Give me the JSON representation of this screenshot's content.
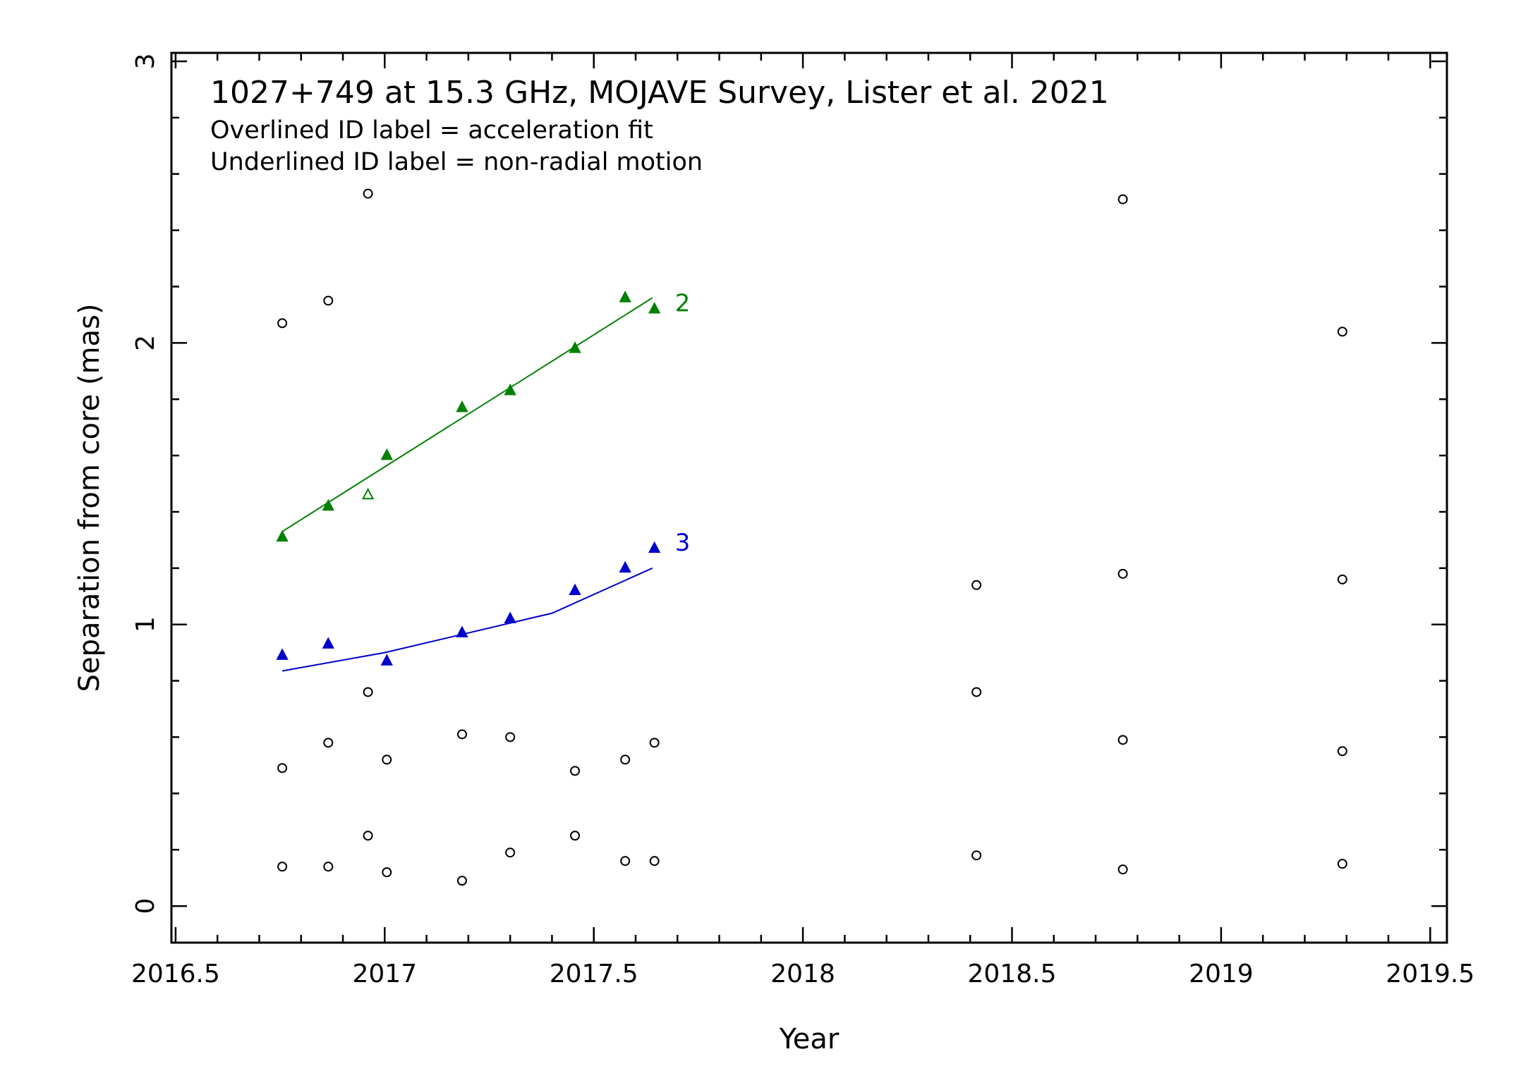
{
  "chart_data": {
    "type": "scatter",
    "title": "1027+749 at 15.3 GHz, MOJAVE Survey, Lister et al. 2021",
    "notes": [
      "Overlined ID label = acceleration fit",
      "Underlined ID label = non-radial motion"
    ],
    "xlabel": "Year",
    "ylabel": "Separation from core (mas)",
    "xlim": [
      2016.49,
      2019.54
    ],
    "ylim": [
      -0.13,
      3.03
    ],
    "xticks": [
      2016.5,
      2017,
      2017.5,
      2018,
      2018.5,
      2019,
      2019.5
    ],
    "xtick_labels": [
      "2016.5",
      "2017",
      "2017.5",
      "2018",
      "2018.5",
      "2019",
      "2019.5"
    ],
    "yticks": [
      0,
      1,
      2,
      3
    ],
    "ytick_labels": [
      "0",
      "1",
      "2",
      "3"
    ],
    "colors": {
      "axis": "#000000",
      "component_2": "#008000",
      "component_3": "#0000cc",
      "other": "#000000"
    },
    "series": [
      {
        "name": "2",
        "color": "#008000",
        "marker": "filled-triangle",
        "points": [
          [
            2016.755,
            1.31
          ],
          [
            2016.865,
            1.42
          ],
          [
            2017.005,
            1.6
          ],
          [
            2017.185,
            1.77
          ],
          [
            2017.3,
            1.83
          ],
          [
            2017.455,
            1.98
          ],
          [
            2017.575,
            2.16
          ],
          [
            2017.645,
            2.12
          ]
        ],
        "unused_points": [
          [
            2016.96,
            1.46
          ]
        ],
        "fit": [
          [
            2016.755,
            1.33
          ],
          [
            2017.64,
            2.16
          ]
        ]
      },
      {
        "name": "3",
        "color": "#0000cc",
        "marker": "filled-triangle",
        "points": [
          [
            2016.755,
            0.89
          ],
          [
            2016.865,
            0.93
          ],
          [
            2017.005,
            0.87
          ],
          [
            2017.185,
            0.97
          ],
          [
            2017.3,
            1.02
          ],
          [
            2017.455,
            1.12
          ],
          [
            2017.575,
            1.2
          ],
          [
            2017.645,
            1.27
          ]
        ],
        "fit": [
          [
            2016.755,
            0.835
          ],
          [
            2017.0,
            0.9
          ],
          [
            2017.2,
            0.97
          ],
          [
            2017.4,
            1.04
          ],
          [
            2017.64,
            1.2
          ]
        ]
      },
      {
        "color": "#000000",
        "marker": "open-circle",
        "points": [
          [
            2016.755,
            2.07
          ],
          [
            2016.865,
            2.15
          ],
          [
            2016.96,
            2.53
          ],
          [
            2018.765,
            2.51
          ],
          [
            2019.29,
            2.04
          ],
          [
            2018.415,
            1.14
          ],
          [
            2018.765,
            1.18
          ],
          [
            2019.29,
            1.16
          ],
          [
            2016.96,
            0.76
          ],
          [
            2018.415,
            0.76
          ],
          [
            2016.755,
            0.49
          ],
          [
            2016.865,
            0.58
          ],
          [
            2017.005,
            0.52
          ],
          [
            2017.185,
            0.61
          ],
          [
            2017.3,
            0.6
          ],
          [
            2017.455,
            0.48
          ],
          [
            2017.575,
            0.52
          ],
          [
            2017.645,
            0.58
          ],
          [
            2018.765,
            0.59
          ],
          [
            2019.29,
            0.55
          ],
          [
            2016.755,
            0.14
          ],
          [
            2016.865,
            0.14
          ],
          [
            2016.96,
            0.25
          ],
          [
            2017.005,
            0.12
          ],
          [
            2017.185,
            0.09
          ],
          [
            2017.3,
            0.19
          ],
          [
            2017.455,
            0.25
          ],
          [
            2017.575,
            0.16
          ],
          [
            2017.645,
            0.16
          ],
          [
            2018.415,
            0.18
          ],
          [
            2018.765,
            0.13
          ],
          [
            2019.29,
            0.15
          ]
        ]
      }
    ]
  }
}
